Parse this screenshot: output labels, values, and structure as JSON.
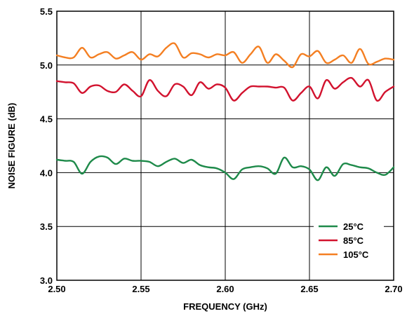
{
  "chart_data": {
    "type": "line",
    "title": "",
    "xlabel": "FREQUENCY (GHz)",
    "ylabel": "NOISE FIGURE (dB)",
    "xlim": [
      2.5,
      2.7
    ],
    "ylim": [
      3.0,
      5.5
    ],
    "x_ticks": [
      "2.50",
      "2.55",
      "2.60",
      "2.65",
      "2.70"
    ],
    "y_ticks": [
      "3.0",
      "3.5",
      "4.0",
      "4.5",
      "5.0",
      "5.5"
    ],
    "grid": true,
    "legend_position": "bottom-right",
    "x": [
      2.5,
      2.505,
      2.51,
      2.515,
      2.52,
      2.525,
      2.53,
      2.535,
      2.54,
      2.545,
      2.55,
      2.555,
      2.56,
      2.565,
      2.57,
      2.575,
      2.58,
      2.585,
      2.59,
      2.595,
      2.6,
      2.605,
      2.61,
      2.615,
      2.62,
      2.625,
      2.63,
      2.635,
      2.64,
      2.645,
      2.65,
      2.655,
      2.66,
      2.665,
      2.67,
      2.675,
      2.68,
      2.685,
      2.69,
      2.695,
      2.7
    ],
    "series": [
      {
        "name": "25°C",
        "color": "#1e8a4a",
        "values": [
          4.12,
          4.11,
          4.1,
          3.99,
          4.1,
          4.15,
          4.14,
          4.08,
          4.13,
          4.11,
          4.11,
          4.1,
          4.06,
          4.1,
          4.13,
          4.09,
          4.12,
          4.07,
          4.05,
          4.04,
          4.0,
          3.94,
          4.03,
          4.05,
          4.06,
          4.04,
          3.99,
          4.14,
          4.05,
          4.06,
          4.03,
          3.93,
          4.05,
          3.97,
          4.08,
          4.07,
          4.05,
          4.04,
          4.0,
          3.98,
          4.05
        ]
      },
      {
        "name": "85°C",
        "color": "#d2122e",
        "values": [
          4.85,
          4.84,
          4.83,
          4.74,
          4.8,
          4.81,
          4.76,
          4.75,
          4.82,
          4.76,
          4.71,
          4.86,
          4.76,
          4.71,
          4.82,
          4.8,
          4.72,
          4.84,
          4.78,
          4.82,
          4.79,
          4.67,
          4.74,
          4.8,
          4.8,
          4.8,
          4.79,
          4.79,
          4.67,
          4.74,
          4.8,
          4.69,
          4.86,
          4.78,
          4.84,
          4.88,
          4.8,
          4.86,
          4.67,
          4.75,
          4.8
        ]
      },
      {
        "name": "105°C",
        "color": "#f47f22",
        "values": [
          5.09,
          5.07,
          5.07,
          5.16,
          5.07,
          5.1,
          5.12,
          5.06,
          5.09,
          5.12,
          5.05,
          5.1,
          5.08,
          5.16,
          5.2,
          5.07,
          5.11,
          5.1,
          5.07,
          5.1,
          5.09,
          5.12,
          5.02,
          5.1,
          5.17,
          5.02,
          5.1,
          5.04,
          4.98,
          5.1,
          5.08,
          5.13,
          5.02,
          5.05,
          5.09,
          5.02,
          5.15,
          5.01,
          5.03,
          5.06,
          5.05
        ]
      }
    ]
  }
}
